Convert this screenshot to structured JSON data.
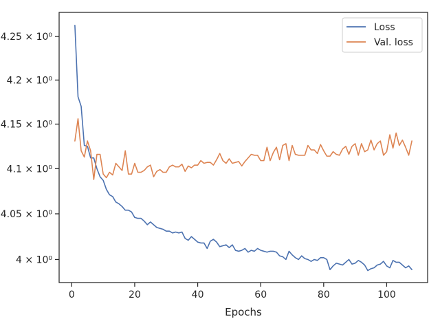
{
  "chart_data": {
    "type": "line",
    "xlabel": "Epochs",
    "ylabel": "",
    "yscale": "log",
    "xlim": [
      -4,
      113
    ],
    "ylim": [
      3.975,
      4.278
    ],
    "xticks": [
      0,
      20,
      40,
      60,
      80,
      100
    ],
    "xtick_labels": [
      "0",
      "20",
      "40",
      "60",
      "80",
      "100"
    ],
    "yticks": [
      4.0,
      4.05,
      4.1,
      4.15,
      4.2,
      4.25
    ],
    "ytick_labels": [
      "4 × 10⁰",
      "4.05 × 10⁰",
      "4.1 × 10⁰",
      "4.15 × 10⁰",
      "4.2 × 10⁰",
      "4.25 × 10⁰"
    ],
    "grid": false,
    "legend_position": "top-right",
    "x": [
      1,
      2,
      3,
      4,
      5,
      6,
      7,
      8,
      9,
      10,
      11,
      12,
      13,
      14,
      15,
      16,
      17,
      18,
      19,
      20,
      21,
      22,
      23,
      24,
      25,
      26,
      27,
      28,
      29,
      30,
      31,
      32,
      33,
      34,
      35,
      36,
      37,
      38,
      39,
      40,
      41,
      42,
      43,
      44,
      45,
      46,
      47,
      48,
      49,
      50,
      51,
      52,
      53,
      54,
      55,
      56,
      57,
      58,
      59,
      60,
      61,
      62,
      63,
      64,
      65,
      66,
      67,
      68,
      69,
      70,
      71,
      72,
      73,
      74,
      75,
      76,
      77,
      78,
      79,
      80,
      81,
      82,
      83,
      84,
      85,
      86,
      87,
      88,
      89,
      90,
      91,
      92,
      93,
      94,
      95,
      96,
      97,
      98,
      99,
      100,
      101,
      102,
      103,
      104,
      105,
      106,
      107,
      108
    ],
    "series": [
      {
        "name": "Loss",
        "color": "#4c72b0",
        "values": [
          4.263,
          4.181,
          4.17,
          4.126,
          4.125,
          4.112,
          4.112,
          4.1,
          4.091,
          4.087,
          4.077,
          4.071,
          4.069,
          4.063,
          4.061,
          4.058,
          4.054,
          4.054,
          4.052,
          4.046,
          4.045,
          4.045,
          4.042,
          4.038,
          4.041,
          4.038,
          4.035,
          4.034,
          4.033,
          4.031,
          4.031,
          4.029,
          4.03,
          4.029,
          4.03,
          4.023,
          4.021,
          4.025,
          4.022,
          4.019,
          4.018,
          4.018,
          4.012,
          4.02,
          4.022,
          4.019,
          4.014,
          4.015,
          4.016,
          4.013,
          4.016,
          4.01,
          4.009,
          4.01,
          4.012,
          4.008,
          4.01,
          4.009,
          4.012,
          4.01,
          4.009,
          4.008,
          4.009,
          4.009,
          4.008,
          4.004,
          4.003,
          4.0,
          4.009,
          4.005,
          4.002,
          4.0,
          4.004,
          4.001,
          4.0,
          3.998,
          4.0,
          3.999,
          4.002,
          4.002,
          4.0,
          3.989,
          3.993,
          3.996,
          3.995,
          3.994,
          3.997,
          4.0,
          3.995,
          3.996,
          3.999,
          3.997,
          3.994,
          3.988,
          3.99,
          3.991,
          3.994,
          3.995,
          3.998,
          3.993,
          3.991,
          3.999,
          3.997,
          3.997,
          3.994,
          3.991,
          3.993,
          3.989
        ]
      },
      {
        "name": "Val. loss",
        "color": "#dd8452",
        "values": [
          4.131,
          4.156,
          4.12,
          4.113,
          4.131,
          4.12,
          4.088,
          4.116,
          4.116,
          4.094,
          4.09,
          4.096,
          4.093,
          4.106,
          4.102,
          4.098,
          4.12,
          4.094,
          4.094,
          4.106,
          4.096,
          4.096,
          4.098,
          4.102,
          4.104,
          4.091,
          4.097,
          4.099,
          4.096,
          4.096,
          4.102,
          4.104,
          4.102,
          4.102,
          4.105,
          4.097,
          4.103,
          4.101,
          4.104,
          4.104,
          4.109,
          4.106,
          4.107,
          4.107,
          4.104,
          4.11,
          4.117,
          4.109,
          4.106,
          4.111,
          4.106,
          4.107,
          4.108,
          4.103,
          4.108,
          4.112,
          4.116,
          4.115,
          4.115,
          4.109,
          4.109,
          4.124,
          4.109,
          4.118,
          4.124,
          4.11,
          4.126,
          4.128,
          4.109,
          4.126,
          4.116,
          4.115,
          4.115,
          4.115,
          4.126,
          4.121,
          4.121,
          4.117,
          4.127,
          4.12,
          4.114,
          4.114,
          4.119,
          4.116,
          4.115,
          4.122,
          4.125,
          4.116,
          4.125,
          4.128,
          4.115,
          4.128,
          4.119,
          4.121,
          4.132,
          4.121,
          4.128,
          4.131,
          4.115,
          4.119,
          4.138,
          4.123,
          4.14,
          4.126,
          4.132,
          4.124,
          4.115,
          4.131
        ]
      }
    ]
  }
}
